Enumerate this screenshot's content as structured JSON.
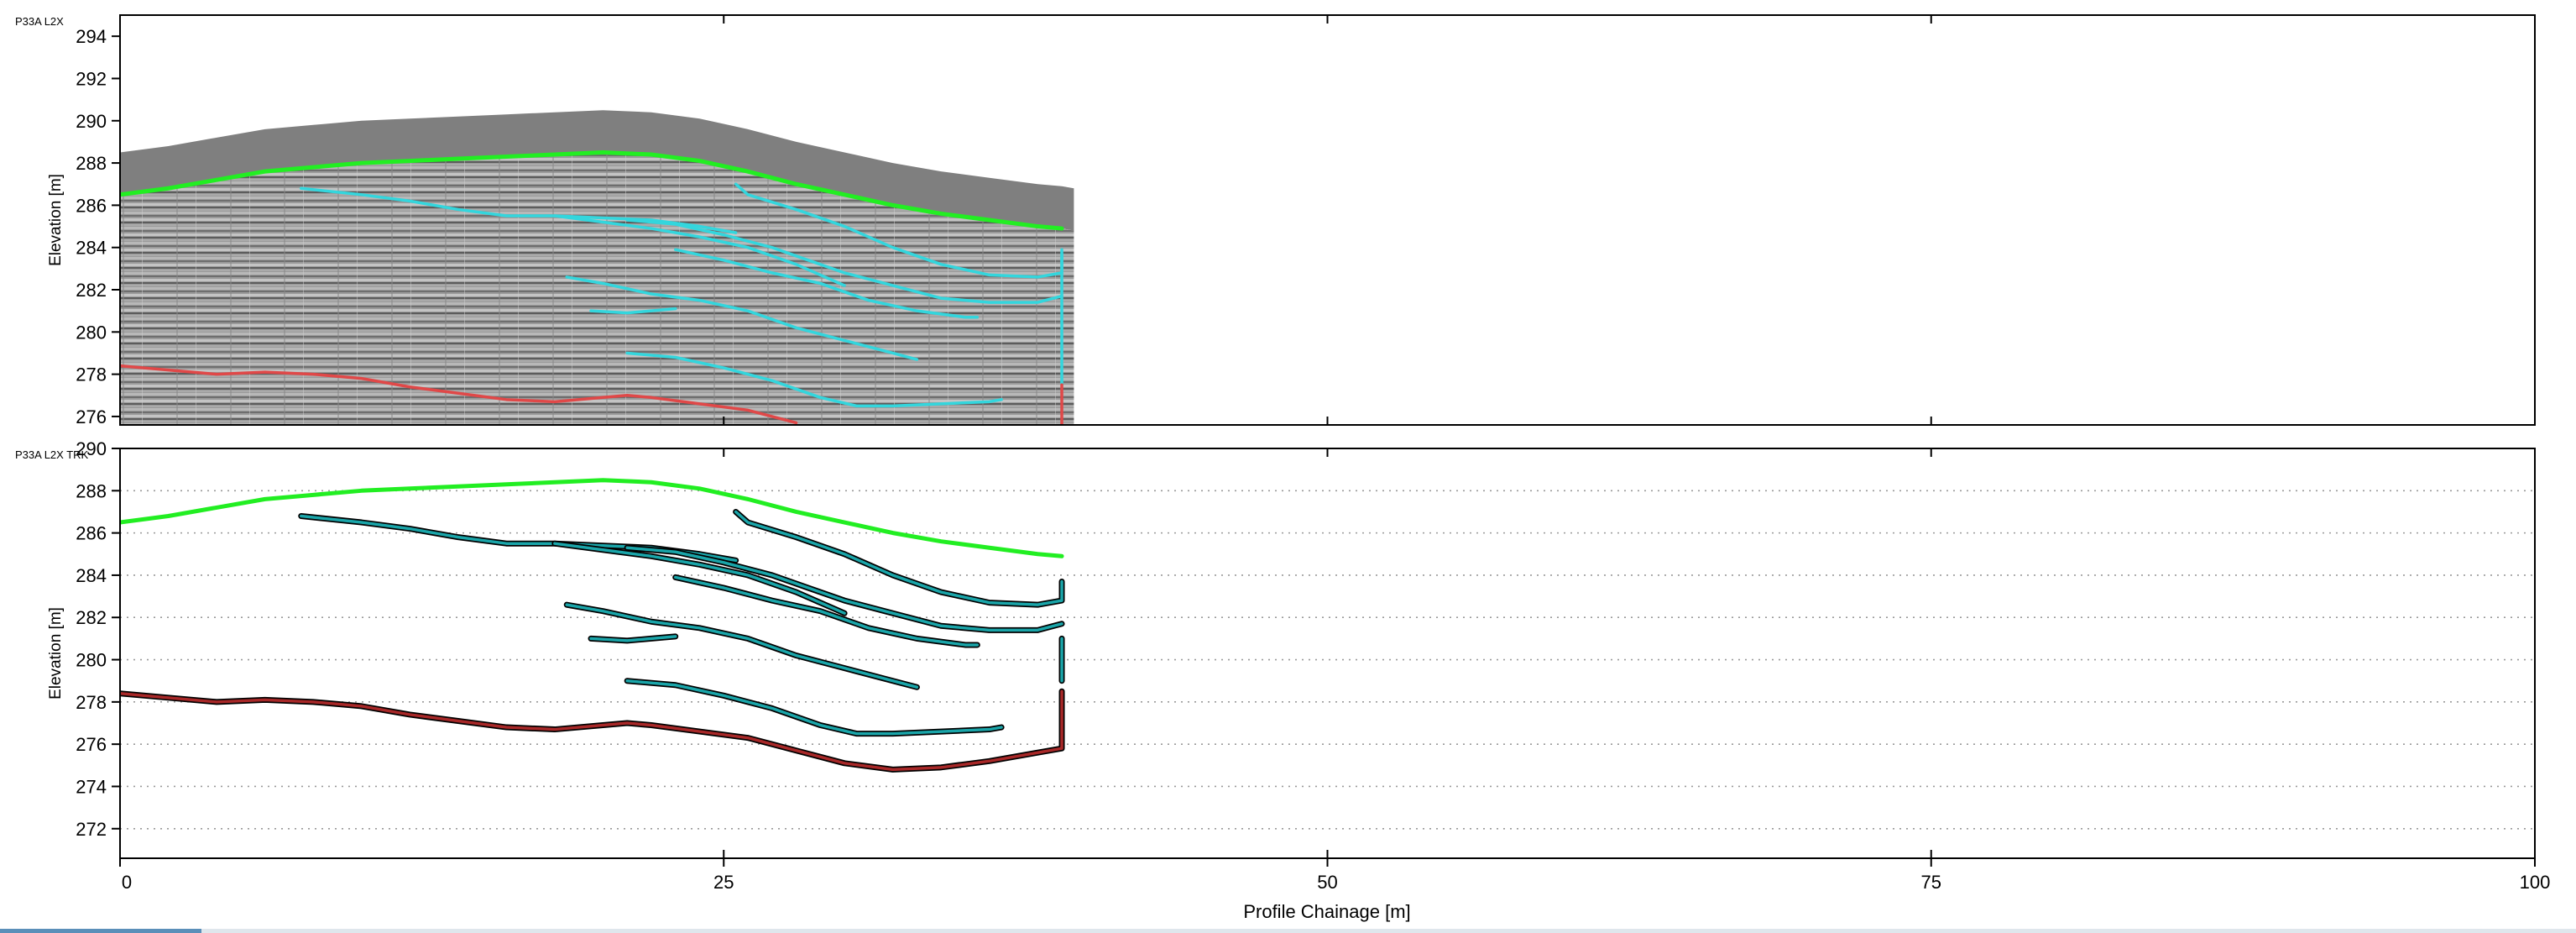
{
  "chart_data": [
    {
      "type": "line",
      "panel_label": "P33A L2X",
      "ylabel": "Elevation [m]",
      "xlim": [
        0,
        100
      ],
      "ylim": [
        275.6,
        295
      ],
      "yticks": [
        "294",
        "292",
        "290",
        "288",
        "286",
        "284",
        "282",
        "280",
        "278",
        "276"
      ],
      "grid": false,
      "background": "gpr radargram (gray, x 0–39.5 m)",
      "series": [
        {
          "key": "ground_surface",
          "color": "#22ee22",
          "points": [
            [
              0,
              286.5
            ],
            [
              2,
              286.8
            ],
            [
              4,
              287.2
            ],
            [
              6,
              287.6
            ],
            [
              8,
              287.8
            ],
            [
              10,
              288.0
            ],
            [
              12,
              288.1
            ],
            [
              14,
              288.2
            ],
            [
              16,
              288.3
            ],
            [
              18,
              288.4
            ],
            [
              20,
              288.5
            ],
            [
              22,
              288.4
            ],
            [
              24,
              288.1
            ],
            [
              26,
              287.6
            ],
            [
              28,
              287.0
            ],
            [
              30,
              286.5
            ],
            [
              32,
              286.0
            ],
            [
              34,
              285.6
            ],
            [
              36,
              285.3
            ],
            [
              38,
              285.0
            ],
            [
              39,
              284.9
            ]
          ]
        },
        {
          "key": "base_layer",
          "color": "#e04848",
          "points": [
            [
              0,
              278.4
            ],
            [
              2,
              278.2
            ],
            [
              4,
              278.0
            ],
            [
              6,
              278.1
            ],
            [
              8,
              278.0
            ],
            [
              10,
              277.8
            ],
            [
              12,
              277.4
            ],
            [
              14,
              277.1
            ],
            [
              16,
              276.8
            ],
            [
              18,
              276.7
            ],
            [
              20,
              276.9
            ],
            [
              21,
              277.0
            ],
            [
              22,
              276.9
            ],
            [
              24,
              276.6
            ],
            [
              26,
              276.3
            ],
            [
              28,
              275.7
            ]
          ]
        },
        {
          "key": "reflector_1",
          "color": "#33d6dd",
          "points": [
            [
              7.5,
              286.8
            ],
            [
              10,
              286.5
            ],
            [
              12,
              286.2
            ],
            [
              14,
              285.8
            ],
            [
              16,
              285.5
            ],
            [
              18,
              285.5
            ],
            [
              20,
              285.4
            ],
            [
              22,
              285.3
            ],
            [
              24,
              285.0
            ],
            [
              25.5,
              284.7
            ]
          ]
        },
        {
          "key": "reflector_2",
          "color": "#33d6dd",
          "points": [
            [
              25.5,
              287.0
            ],
            [
              26,
              286.5
            ],
            [
              28,
              285.8
            ],
            [
              30,
              285.0
            ],
            [
              32,
              284.0
            ],
            [
              34,
              283.2
            ],
            [
              36,
              282.7
            ],
            [
              38,
              282.6
            ],
            [
              39,
              282.8
            ],
            [
              39,
              283.7
            ]
          ]
        },
        {
          "key": "reflector_3",
          "color": "#33d6dd",
          "points": [
            [
              18,
              285.5
            ],
            [
              20,
              285.2
            ],
            [
              22,
              284.9
            ],
            [
              24,
              284.5
            ],
            [
              26,
              284.0
            ],
            [
              28,
              283.2
            ],
            [
              30,
              282.2
            ]
          ]
        },
        {
          "key": "reflector_4",
          "color": "#33d6dd",
          "points": [
            [
              21,
              285.3
            ],
            [
              23,
              285.1
            ],
            [
              25,
              284.6
            ],
            [
              27,
              284.0
            ],
            [
              28.5,
              283.4
            ],
            [
              30,
              282.8
            ],
            [
              32,
              282.2
            ],
            [
              34,
              281.6
            ],
            [
              36,
              281.4
            ],
            [
              38,
              281.4
            ],
            [
              39,
              281.7
            ]
          ]
        },
        {
          "key": "reflector_5",
          "color": "#33d6dd",
          "points": [
            [
              23,
              283.9
            ],
            [
              25,
              283.4
            ],
            [
              27,
              282.8
            ],
            [
              29,
              282.3
            ],
            [
              31,
              281.5
            ],
            [
              33,
              281.0
            ],
            [
              35,
              280.7
            ],
            [
              35.5,
              280.7
            ]
          ]
        },
        {
          "key": "reflector_6",
          "color": "#33d6dd",
          "points": [
            [
              18.5,
              282.6
            ],
            [
              20,
              282.3
            ],
            [
              22,
              281.8
            ],
            [
              24,
              281.5
            ],
            [
              26,
              281.0
            ],
            [
              28,
              280.2
            ],
            [
              30,
              279.6
            ],
            [
              32,
              279.0
            ],
            [
              33,
              278.7
            ]
          ]
        },
        {
          "key": "reflector_7",
          "color": "#33d6dd",
          "points": [
            [
              19.5,
              281.0
            ],
            [
              21,
              280.9
            ],
            [
              22,
              281.0
            ],
            [
              23,
              281.1
            ]
          ]
        },
        {
          "key": "reflector_8",
          "color": "#33d6dd",
          "points": [
            [
              21,
              279.0
            ],
            [
              23,
              278.8
            ],
            [
              25,
              278.3
            ],
            [
              27,
              277.7
            ],
            [
              29,
              276.9
            ],
            [
              30.5,
              276.5
            ],
            [
              32,
              276.5
            ],
            [
              34,
              276.6
            ],
            [
              36,
              276.7
            ],
            [
              36.5,
              276.8
            ]
          ]
        },
        {
          "key": "right_edge_cyan",
          "color": "#33d6dd",
          "points": [
            [
              39,
              283.9
            ],
            [
              39,
              277.5
            ]
          ]
        },
        {
          "key": "right_edge_red",
          "color": "#e04848",
          "points": [
            [
              39,
              277.5
            ],
            [
              39,
              275.6
            ]
          ]
        }
      ]
    },
    {
      "type": "line",
      "panel_label": "P33A L2X TRK",
      "ylabel": "Elevation [m]",
      "xlabel": "Profile Chainage [m]",
      "xlim": [
        0,
        100
      ],
      "ylim": [
        270.6,
        290
      ],
      "yticks": [
        "290",
        "288",
        "286",
        "284",
        "282",
        "280",
        "278",
        "276",
        "274",
        "272"
      ],
      "xticks": [
        "0",
        "25",
        "50",
        "75",
        "100"
      ],
      "grid": "dotted horizontal",
      "series": [
        {
          "key": "ground_surface",
          "color": "#22ee22",
          "points": [
            [
              0,
              286.5
            ],
            [
              2,
              286.8
            ],
            [
              4,
              287.2
            ],
            [
              6,
              287.6
            ],
            [
              8,
              287.8
            ],
            [
              10,
              288.0
            ],
            [
              12,
              288.1
            ],
            [
              14,
              288.2
            ],
            [
              16,
              288.3
            ],
            [
              18,
              288.4
            ],
            [
              20,
              288.5
            ],
            [
              22,
              288.4
            ],
            [
              24,
              288.1
            ],
            [
              26,
              287.6
            ],
            [
              28,
              287.0
            ],
            [
              30,
              286.5
            ],
            [
              32,
              286.0
            ],
            [
              34,
              285.6
            ],
            [
              36,
              285.3
            ],
            [
              38,
              285.0
            ],
            [
              39,
              284.9
            ]
          ]
        },
        {
          "key": "base_layer",
          "color": "#a82828",
          "points": [
            [
              0,
              278.4
            ],
            [
              2,
              278.2
            ],
            [
              4,
              278.0
            ],
            [
              6,
              278.1
            ],
            [
              8,
              278.0
            ],
            [
              10,
              277.8
            ],
            [
              12,
              277.4
            ],
            [
              14,
              277.1
            ],
            [
              16,
              276.8
            ],
            [
              18,
              276.7
            ],
            [
              20,
              276.9
            ],
            [
              21,
              277.0
            ],
            [
              22,
              276.9
            ],
            [
              24,
              276.6
            ],
            [
              26,
              276.3
            ],
            [
              28,
              275.7
            ],
            [
              30,
              275.1
            ],
            [
              32,
              274.8
            ],
            [
              34,
              274.9
            ],
            [
              36,
              275.2
            ],
            [
              38,
              275.6
            ],
            [
              39,
              275.8
            ],
            [
              39,
              278.5
            ]
          ]
        },
        {
          "key": "reflector_1",
          "color": "#1aa5a9",
          "points": [
            [
              7.5,
              286.8
            ],
            [
              10,
              286.5
            ],
            [
              12,
              286.2
            ],
            [
              14,
              285.8
            ],
            [
              16,
              285.5
            ],
            [
              18,
              285.5
            ],
            [
              20,
              285.4
            ],
            [
              22,
              285.3
            ],
            [
              24,
              285.0
            ],
            [
              25.5,
              284.7
            ]
          ]
        },
        {
          "key": "reflector_2",
          "color": "#1aa5a9",
          "points": [
            [
              25.5,
              287.0
            ],
            [
              26,
              286.5
            ],
            [
              28,
              285.8
            ],
            [
              30,
              285.0
            ],
            [
              32,
              284.0
            ],
            [
              34,
              283.2
            ],
            [
              36,
              282.7
            ],
            [
              38,
              282.6
            ],
            [
              39,
              282.8
            ],
            [
              39,
              283.7
            ]
          ]
        },
        {
          "key": "reflector_3",
          "color": "#1aa5a9",
          "points": [
            [
              18,
              285.5
            ],
            [
              20,
              285.2
            ],
            [
              22,
              284.9
            ],
            [
              24,
              284.5
            ],
            [
              26,
              284.0
            ],
            [
              28,
              283.2
            ],
            [
              30,
              282.2
            ]
          ]
        },
        {
          "key": "reflector_4",
          "color": "#1aa5a9",
          "points": [
            [
              21,
              285.3
            ],
            [
              23,
              285.1
            ],
            [
              25,
              284.6
            ],
            [
              27,
              284.0
            ],
            [
              28.5,
              283.4
            ],
            [
              30,
              282.8
            ],
            [
              32,
              282.2
            ],
            [
              34,
              281.6
            ],
            [
              36,
              281.4
            ],
            [
              38,
              281.4
            ],
            [
              39,
              281.7
            ]
          ]
        },
        {
          "key": "reflector_5",
          "color": "#1aa5a9",
          "points": [
            [
              23,
              283.9
            ],
            [
              25,
              283.4
            ],
            [
              27,
              282.8
            ],
            [
              29,
              282.3
            ],
            [
              31,
              281.5
            ],
            [
              33,
              281.0
            ],
            [
              35,
              280.7
            ],
            [
              35.5,
              280.7
            ]
          ]
        },
        {
          "key": "reflector_6",
          "color": "#1aa5a9",
          "points": [
            [
              18.5,
              282.6
            ],
            [
              20,
              282.3
            ],
            [
              22,
              281.8
            ],
            [
              24,
              281.5
            ],
            [
              26,
              281.0
            ],
            [
              28,
              280.2
            ],
            [
              30,
              279.6
            ],
            [
              32,
              279.0
            ],
            [
              33,
              278.7
            ]
          ]
        },
        {
          "key": "reflector_7",
          "color": "#1aa5a9",
          "points": [
            [
              19.5,
              281.0
            ],
            [
              21,
              280.9
            ],
            [
              22,
              281.0
            ],
            [
              23,
              281.1
            ]
          ]
        },
        {
          "key": "reflector_8",
          "color": "#1aa5a9",
          "points": [
            [
              21,
              279.0
            ],
            [
              23,
              278.8
            ],
            [
              25,
              278.3
            ],
            [
              27,
              277.7
            ],
            [
              29,
              276.9
            ],
            [
              30.5,
              276.5
            ],
            [
              32,
              276.5
            ],
            [
              34,
              276.6
            ],
            [
              36,
              276.7
            ],
            [
              36.5,
              276.8
            ]
          ]
        },
        {
          "key": "right_edge",
          "color": "#1aa5a9",
          "points": [
            [
              39,
              281.0
            ],
            [
              39,
              279.0
            ]
          ]
        }
      ]
    }
  ]
}
